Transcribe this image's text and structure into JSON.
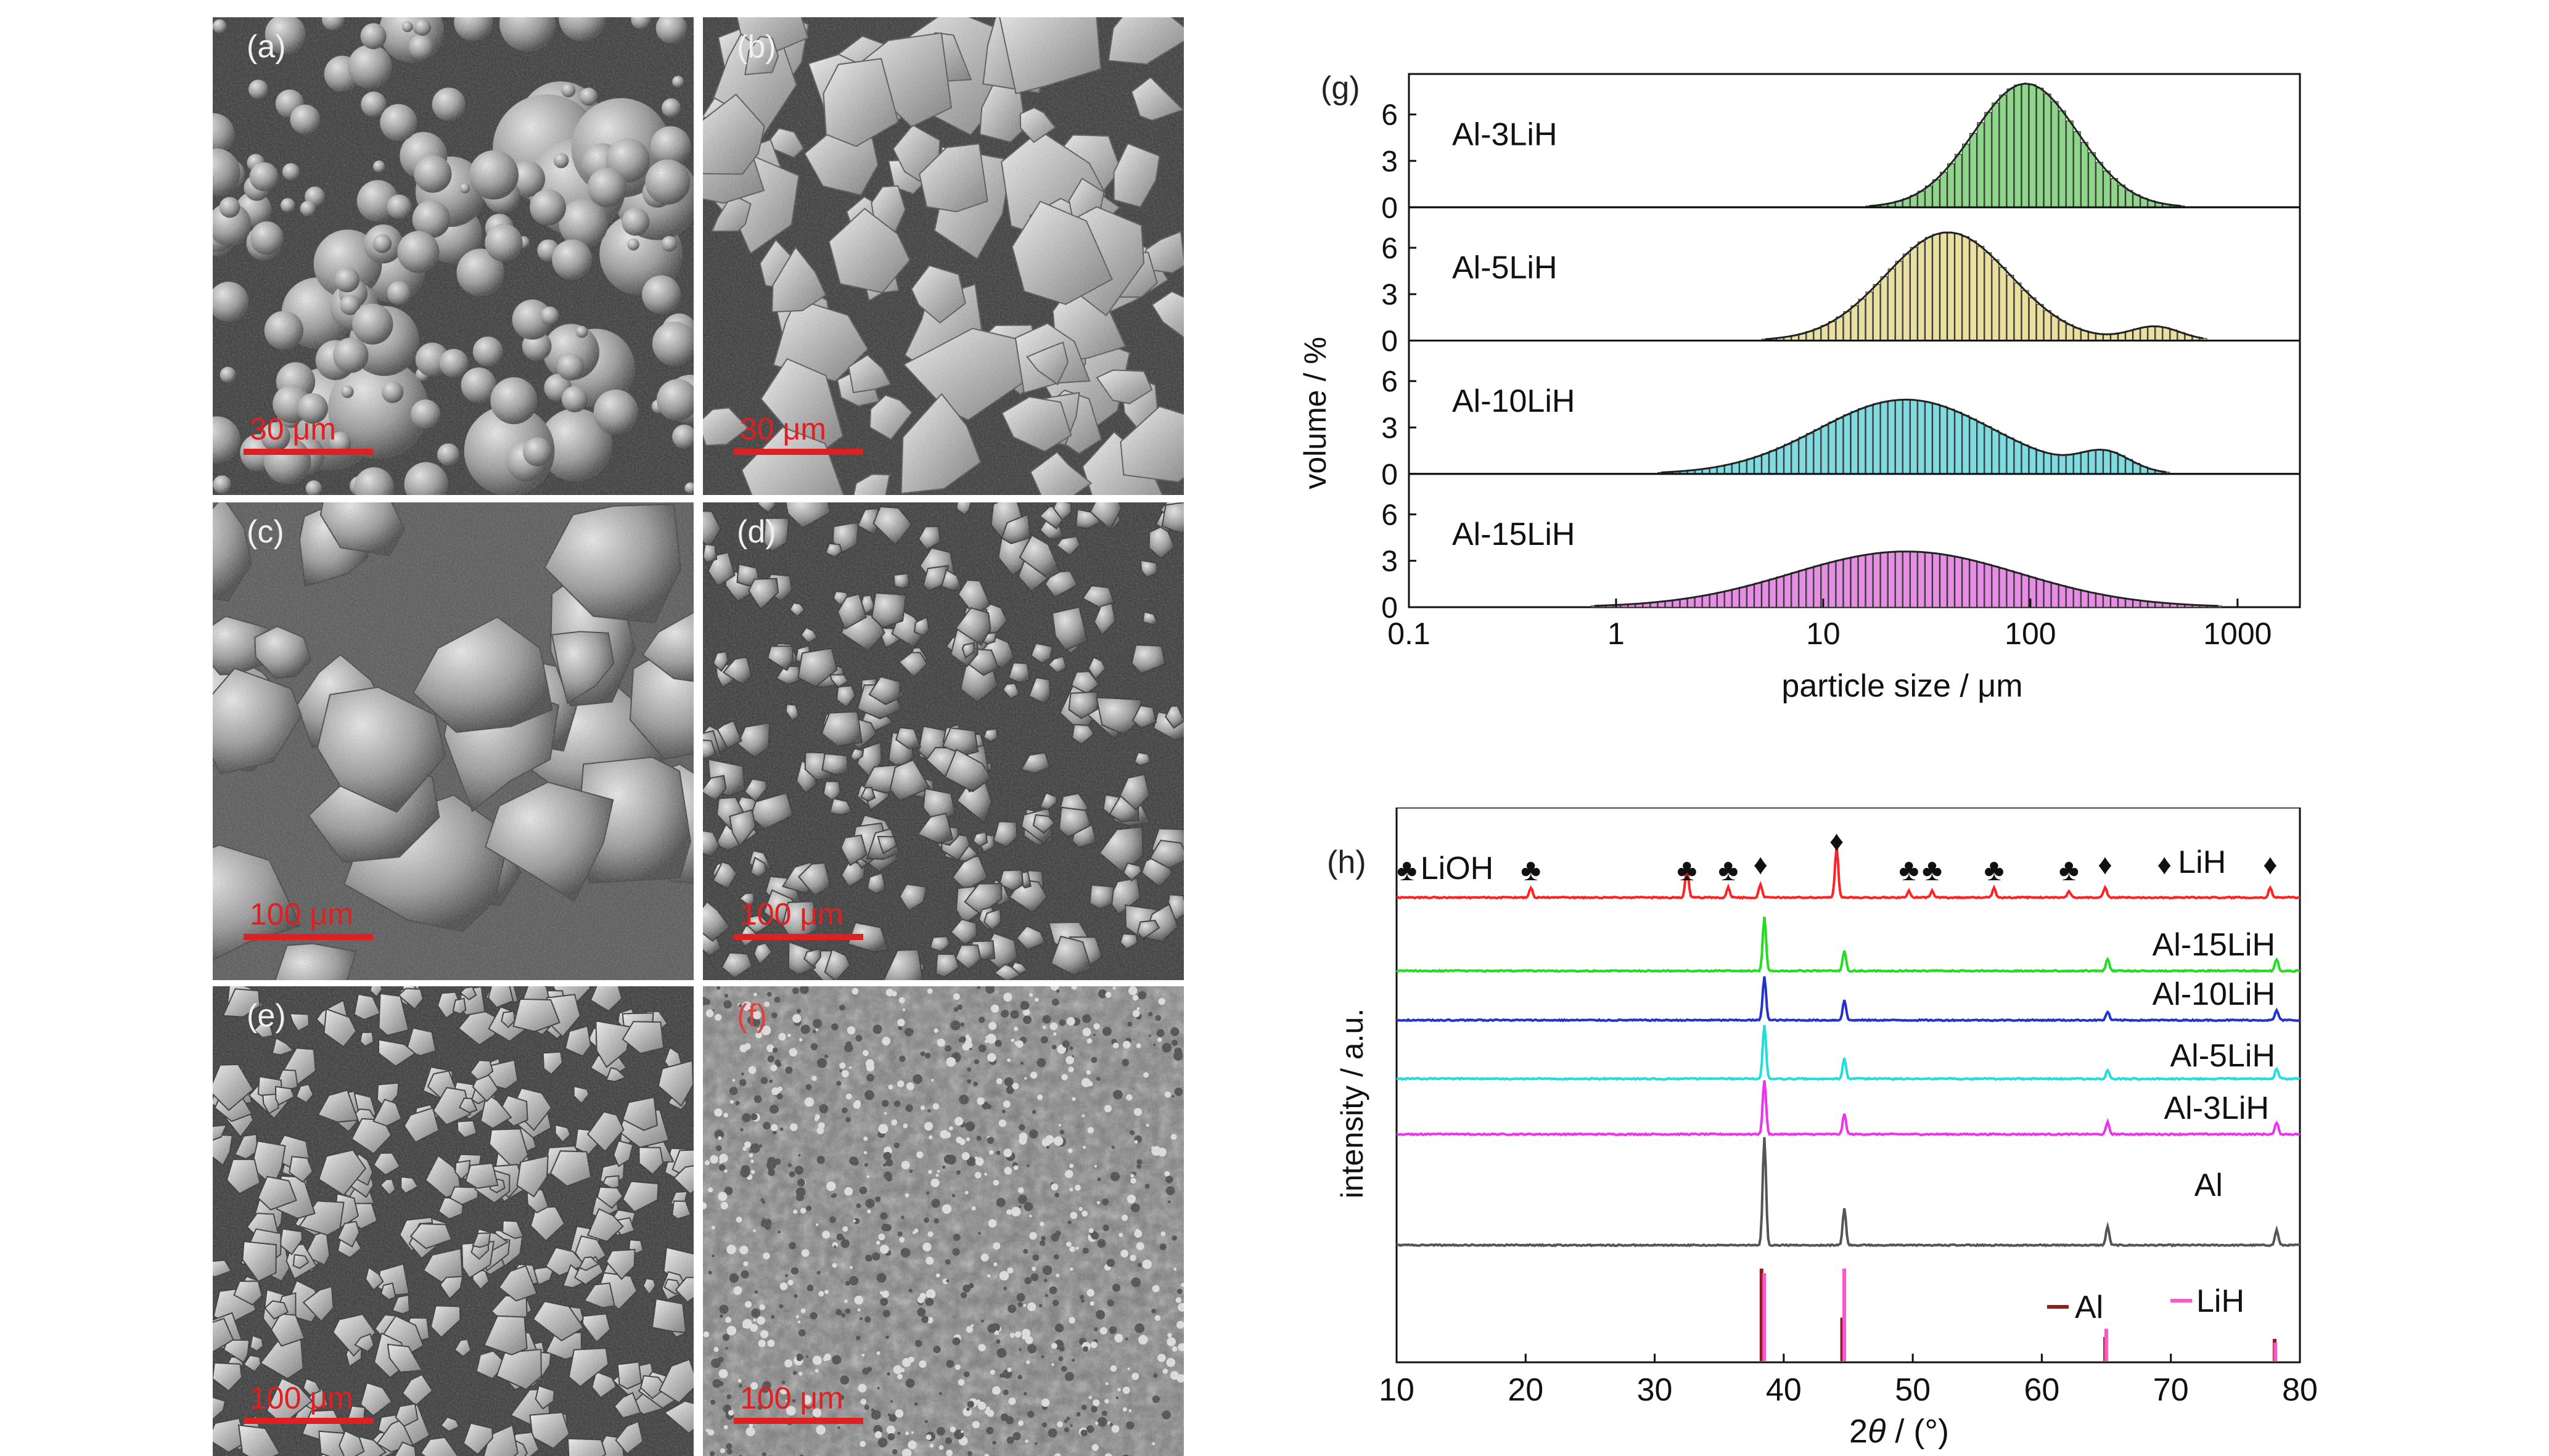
{
  "sem_panels": [
    {
      "label": "(a)",
      "scale_bar": "30 μm",
      "texture": "spheres"
    },
    {
      "label": "(b)",
      "scale_bar": "30 μm",
      "texture": "flakes"
    },
    {
      "label": "(c)",
      "scale_bar": "100 μm",
      "texture": "chunks"
    },
    {
      "label": "(d)",
      "scale_bar": "100 μm",
      "texture": "grains"
    },
    {
      "label": "(e)",
      "scale_bar": "100 μm",
      "texture": "angular"
    },
    {
      "label": "(f)",
      "scale_bar": "100 μm",
      "texture": "fine"
    }
  ],
  "chart_data": [
    {
      "panel": "(g)",
      "type": "bar",
      "ylabel": "volume / %",
      "xlabel": "particle size / μm",
      "x_scale": "log",
      "xlim": [
        0.1,
        2000
      ],
      "x_ticks": [
        "0.1",
        "1",
        "10",
        "100",
        "1000"
      ],
      "y_ticks": [
        "0",
        "3",
        "6"
      ],
      "series": [
        {
          "name": "Al-3LiH",
          "color": "#8fd68a",
          "center": 95,
          "log_sigma": 0.25,
          "peak": 8.0
        },
        {
          "name": "Al-5LiH",
          "color": "#e8dfa0",
          "center": 40,
          "log_sigma": 0.3,
          "peak": 7.0,
          "shoulder_center": 400,
          "shoulder_peak": 0.9
        },
        {
          "name": "Al-10LiH",
          "color": "#7fdbe0",
          "center": 25,
          "log_sigma": 0.42,
          "peak": 4.8,
          "shoulder_center": 230,
          "shoulder_peak": 1.2
        },
        {
          "name": "Al-15LiH",
          "color": "#e58ee3",
          "center": 25,
          "log_sigma": 0.55,
          "peak": 3.6
        }
      ]
    },
    {
      "panel": "(h)",
      "type": "line",
      "ylabel": "intensity / a.u.",
      "xlabel": "2θ / (°)",
      "xlim": [
        10,
        80
      ],
      "x_ticks": [
        "10",
        "20",
        "30",
        "40",
        "50",
        "60",
        "70",
        "80"
      ],
      "series": [
        {
          "name": "LiOH / LiH",
          "color": "#ff2222",
          "peaks": [
            [
              20.4,
              0.3
            ],
            [
              32.5,
              0.9
            ],
            [
              35.7,
              0.3
            ],
            [
              38.2,
              0.4
            ],
            [
              44.1,
              1.5
            ],
            [
              49.7,
              0.2
            ],
            [
              51.5,
              0.2
            ],
            [
              56.3,
              0.3
            ],
            [
              62.1,
              0.2
            ],
            [
              64.9,
              0.3
            ],
            [
              77.7,
              0.3
            ]
          ]
        },
        {
          "name": "Al-15LiH",
          "color": "#22dd22",
          "peaks": [
            [
              38.5,
              1.6
            ],
            [
              44.7,
              0.6
            ],
            [
              65.1,
              0.35
            ],
            [
              78.2,
              0.35
            ]
          ]
        },
        {
          "name": "Al-10LiH",
          "color": "#2233cc",
          "peaks": [
            [
              38.5,
              1.3
            ],
            [
              44.7,
              0.6
            ],
            [
              65.1,
              0.25
            ],
            [
              78.2,
              0.3
            ]
          ]
        },
        {
          "name": "Al-5LiH",
          "color": "#22dddd",
          "peaks": [
            [
              38.5,
              1.6
            ],
            [
              44.7,
              0.6
            ],
            [
              65.1,
              0.25
            ],
            [
              78.2,
              0.3
            ]
          ]
        },
        {
          "name": "Al-3LiH",
          "color": "#ee33ee",
          "peaks": [
            [
              38.5,
              1.6
            ],
            [
              44.7,
              0.6
            ],
            [
              65.1,
              0.35
            ],
            [
              78.2,
              0.35
            ]
          ]
        },
        {
          "name": "Al",
          "color": "#555555",
          "peaks": [
            [
              38.5,
              3.2
            ],
            [
              44.7,
              1.1
            ],
            [
              65.1,
              0.55
            ],
            [
              78.2,
              0.45
            ]
          ]
        }
      ],
      "reference_lines": {
        "Al": {
          "color": "#8b2020",
          "positions": [
            38.47,
            44.72,
            65.1,
            78.23
          ],
          "heights": [
            1.0,
            0.47,
            0.26,
            0.24
          ]
        },
        "LiH": {
          "color": "#ff55cc",
          "positions": [
            38.3,
            44.5,
            64.8,
            77.9
          ],
          "heights": [
            0.95,
            1.0,
            0.35,
            0.2
          ]
        }
      },
      "annotations": {
        "lioh_label": "LiOH",
        "lih_label": "LiH",
        "lioh_symbol": "♣",
        "lih_symbol": "♦",
        "lioh_positions": [
          10.8,
          20.4,
          32.5,
          35.7,
          49.7,
          51.5,
          56.3,
          62.1
        ],
        "lih_positions": [
          38.2,
          44.1,
          64.9,
          69.5,
          77.7
        ],
        "legend_al": "Al",
        "legend_lih": "LiH"
      }
    }
  ]
}
